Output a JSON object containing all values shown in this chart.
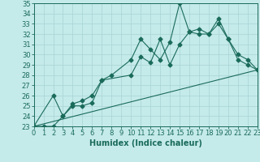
{
  "xlabel": "Humidex (Indice chaleur)",
  "bg_color": "#c5eaea",
  "grid_color": "#a8d4d4",
  "line_color": "#1a6b5a",
  "xlim": [
    0,
    23
  ],
  "ylim": [
    23,
    35
  ],
  "yticks": [
    23,
    24,
    25,
    26,
    27,
    28,
    29,
    30,
    31,
    32,
    33,
    34,
    35
  ],
  "xticks": [
    0,
    1,
    2,
    3,
    4,
    5,
    6,
    7,
    8,
    9,
    10,
    11,
    12,
    13,
    14,
    15,
    16,
    17,
    18,
    19,
    20,
    21,
    22,
    23
  ],
  "line1_x": [
    0,
    1,
    2,
    3,
    4,
    5,
    6,
    7,
    8,
    10,
    11,
    12,
    13,
    14,
    15,
    16,
    17,
    18,
    19,
    20,
    21,
    22,
    23
  ],
  "line1_y": [
    23,
    23,
    23,
    24,
    25,
    25,
    25.3,
    27.5,
    28,
    29.5,
    31.5,
    30.5,
    29.5,
    31.2,
    35,
    32.2,
    32.5,
    32,
    33,
    31.5,
    30,
    29.5,
    28.5
  ],
  "line2_x": [
    0,
    2,
    3,
    4,
    5,
    6,
    7,
    10,
    11,
    12,
    13,
    14,
    15,
    16,
    17,
    18,
    19,
    20,
    21,
    22,
    23
  ],
  "line2_y": [
    23,
    26,
    24,
    25.2,
    25.5,
    26,
    27.5,
    28,
    29.8,
    29.2,
    31.5,
    29,
    31,
    32.2,
    32,
    32,
    33.5,
    31.5,
    29.5,
    29,
    28.5
  ],
  "line3_x": [
    0,
    23
  ],
  "line3_y": [
    23,
    28.5
  ],
  "font_size": 6
}
